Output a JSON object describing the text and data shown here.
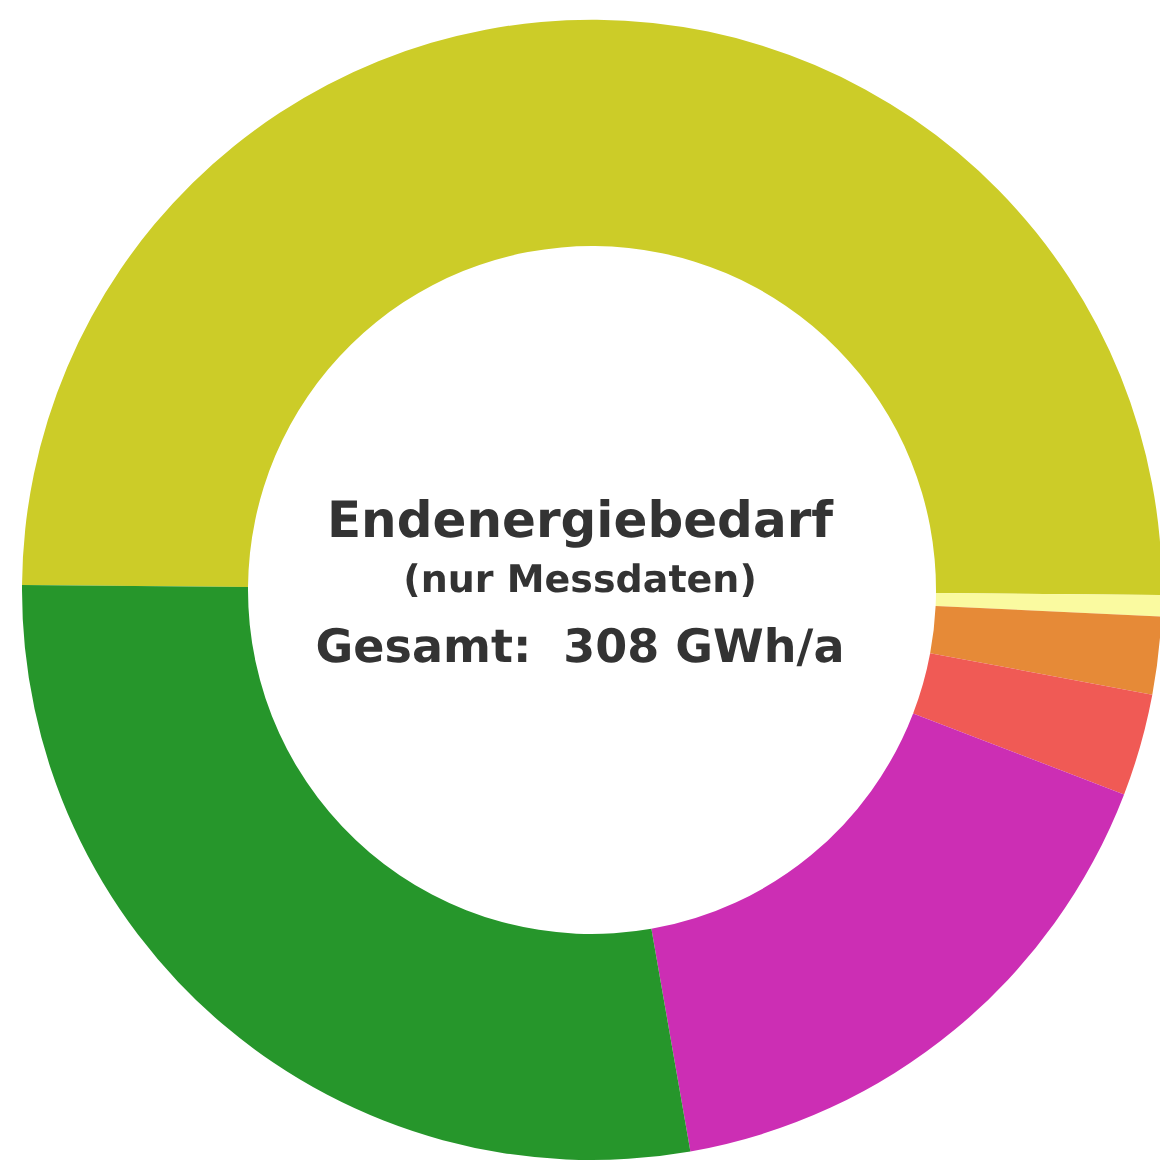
{
  "chart_data": {
    "type": "donut",
    "title": "Endenergiebedarf",
    "subtitle": "(nur Messdaten)",
    "annotations": [
      "Gesamt:  308 GWh/a"
    ],
    "categories": [
      null,
      null,
      null,
      null,
      null,
      null
    ],
    "values": [
      50.0,
      0.6,
      2.2,
      2.9,
      16.4,
      27.9
    ],
    "colors": [
      "#cccc28",
      "#fafaa0",
      "#e68a37",
      "#f05a55",
      "#cc2eb4",
      "#26962b"
    ]
  }
}
